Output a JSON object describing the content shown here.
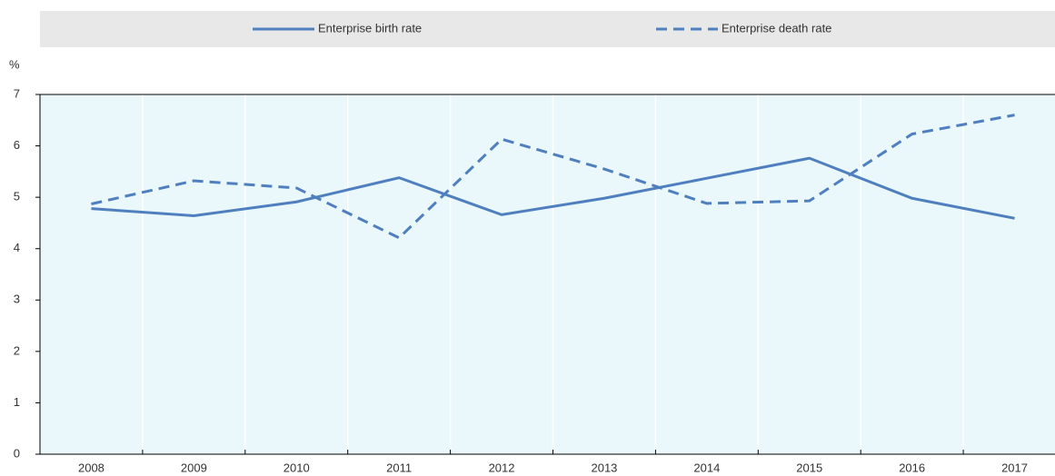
{
  "chart_data": {
    "type": "line",
    "y_label": "%",
    "categories": [
      "2008",
      "2009",
      "2010",
      "2011",
      "2012",
      "2013",
      "2014",
      "2015",
      "2016",
      "2017"
    ],
    "series": [
      {
        "name": "Enterprise birth rate",
        "color": "#4f7fbf",
        "dash": false,
        "values": [
          4.78,
          4.64,
          4.91,
          5.38,
          4.66,
          4.98,
          5.37,
          5.76,
          4.98,
          4.59
        ]
      },
      {
        "name": "Enterprise death rate",
        "color": "#4f7fbf",
        "dash": true,
        "values": [
          4.87,
          5.32,
          5.18,
          4.21,
          6.13,
          5.55,
          4.88,
          4.93,
          6.23,
          6.6
        ]
      }
    ],
    "ylim": [
      0,
      7
    ],
    "yticks": [
      0,
      1,
      2,
      3,
      4,
      5,
      6,
      7
    ],
    "grid": true,
    "legend": "top"
  }
}
